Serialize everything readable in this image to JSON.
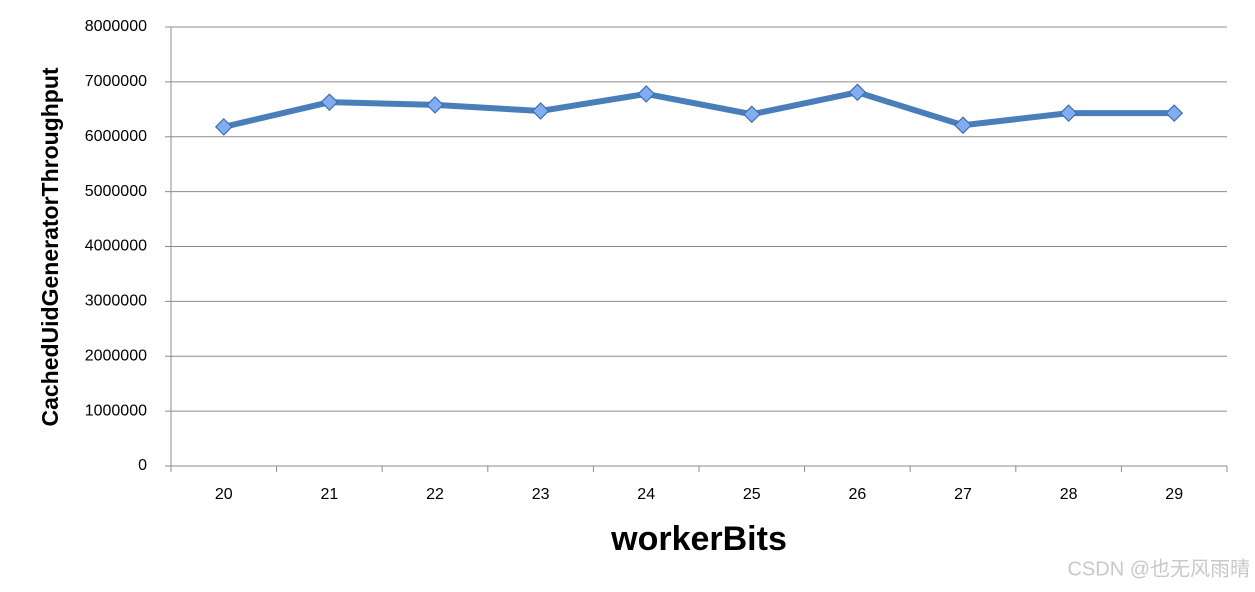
{
  "chart_data": {
    "type": "line",
    "x_label": "workerBits",
    "y_label": "CachedUidGeneratorThroughput",
    "categories": [
      "20",
      "21",
      "22",
      "23",
      "24",
      "25",
      "26",
      "27",
      "28",
      "29"
    ],
    "values": [
      6180000,
      6630000,
      6580000,
      6470000,
      6780000,
      6410000,
      6810000,
      6210000,
      6430000,
      6430000
    ],
    "color": "#4a7ebb",
    "ylim": [
      0,
      8000000
    ],
    "yticks": [
      0,
      1000000,
      2000000,
      3000000,
      4000000,
      5000000,
      6000000,
      7000000,
      8000000
    ],
    "grid": true
  },
  "watermark": "CSDN @也无风雨晴"
}
